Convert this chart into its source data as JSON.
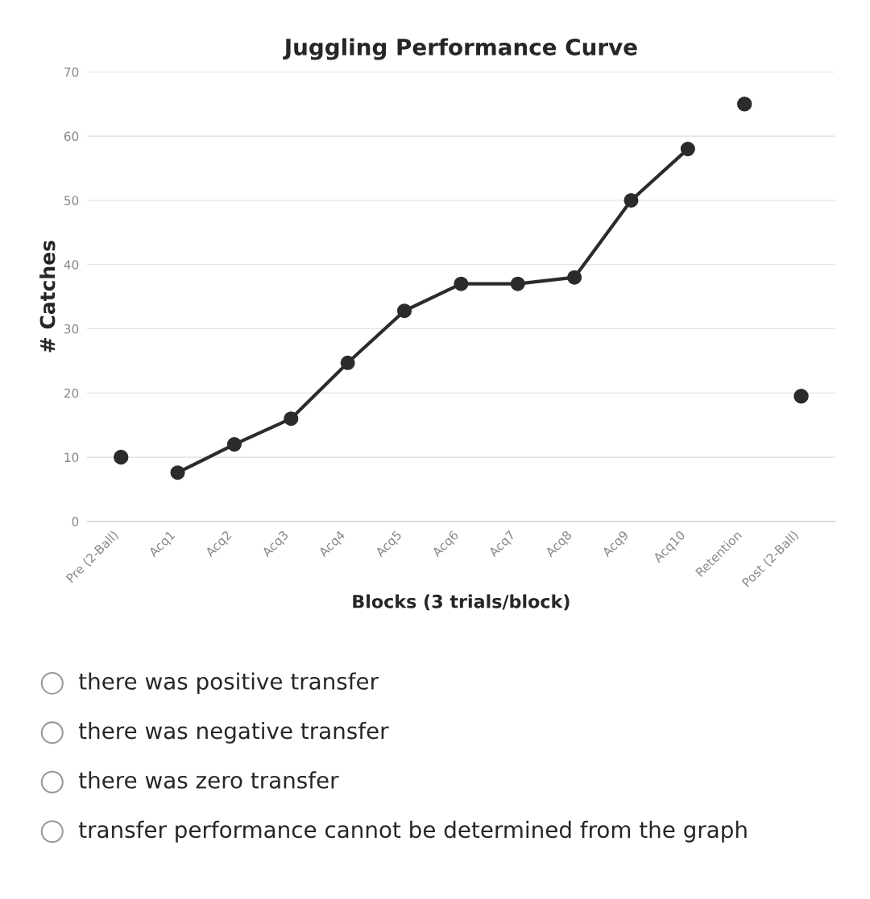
{
  "chart_data": {
    "type": "line",
    "title": "Juggling Performance Curve",
    "xlabel": "Blocks (3 trials/block)",
    "ylabel": "# Catches",
    "categories": [
      "Pre (2-Ball)",
      "Acq1",
      "Acq2",
      "Acq3",
      "Acq4",
      "Acq5",
      "Acq6",
      "Acq7",
      "Acq8",
      "Acq9",
      "Acq10",
      "Retention",
      "Post (2-Ball)"
    ],
    "series": [
      {
        "color": "#2b2b2b",
        "values": [
          null,
          7.6,
          12,
          16,
          24.7,
          32.8,
          37,
          37,
          38,
          50,
          58,
          null,
          null
        ]
      },
      {
        "type": "scatter",
        "color": "#2b2b2b",
        "values": [
          10,
          null,
          null,
          null,
          null,
          null,
          null,
          null,
          null,
          null,
          null,
          65,
          19.5
        ]
      }
    ],
    "ylim": [
      0,
      70
    ],
    "yticks": [
      0,
      10,
      20,
      30,
      40,
      50,
      60,
      70
    ],
    "grid": "y",
    "marker": "circle",
    "annotations": [
      "there was positive transfer",
      "there was negative transfer",
      "there was zero transfer",
      "transfer performance cannot be determined from the graph"
    ]
  }
}
